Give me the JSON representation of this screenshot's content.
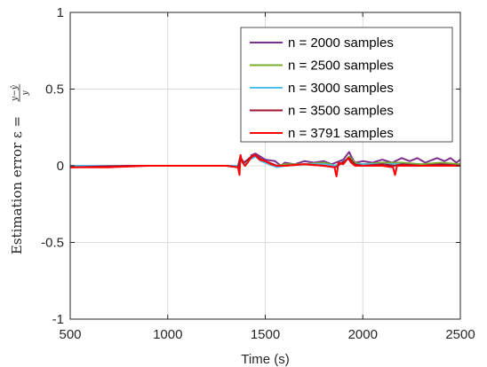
{
  "chart_data": {
    "type": "line",
    "xlabel": "Time (s)",
    "ylabel": {
      "main": "Estimation error ε =",
      "numerator": "y−ŷ",
      "denominator": "y"
    },
    "xlim": [
      500,
      2500
    ],
    "ylim": [
      -1,
      1
    ],
    "xticks": [
      "500",
      "1000",
      "1500",
      "2000",
      "2500"
    ],
    "yticks": [
      "1",
      "0.5",
      "0",
      "-0.5",
      "-1"
    ],
    "grid": true,
    "legend_position": "top-right",
    "series": [
      {
        "name": "n = 2000 samples",
        "color": "#7E2F8E",
        "points": [
          [
            500,
            0.0
          ],
          [
            800,
            0.0
          ],
          [
            1100,
            0.0
          ],
          [
            1300,
            0.0
          ],
          [
            1360,
            0.0
          ],
          [
            1372,
            0.06
          ],
          [
            1385,
            0.03
          ],
          [
            1398,
            0.01
          ],
          [
            1410,
            0.02
          ],
          [
            1430,
            0.07
          ],
          [
            1450,
            0.08
          ],
          [
            1475,
            0.06
          ],
          [
            1500,
            0.04
          ],
          [
            1550,
            0.03
          ],
          [
            1580,
            0.0
          ],
          [
            1600,
            0.02
          ],
          [
            1650,
            0.01
          ],
          [
            1700,
            0.03
          ],
          [
            1750,
            0.02
          ],
          [
            1800,
            0.03
          ],
          [
            1840,
            0.01
          ],
          [
            1860,
            0.02
          ],
          [
            1900,
            0.04
          ],
          [
            1930,
            0.09
          ],
          [
            1945,
            0.05
          ],
          [
            1960,
            0.02
          ],
          [
            2000,
            0.03
          ],
          [
            2050,
            0.02
          ],
          [
            2100,
            0.04
          ],
          [
            2150,
            0.02
          ],
          [
            2200,
            0.05
          ],
          [
            2240,
            0.03
          ],
          [
            2280,
            0.05
          ],
          [
            2320,
            0.02
          ],
          [
            2380,
            0.05
          ],
          [
            2420,
            0.03
          ],
          [
            2450,
            0.05
          ],
          [
            2480,
            0.02
          ],
          [
            2500,
            0.04
          ]
        ]
      },
      {
        "name": "n = 2500 samples",
        "color": "#77AC30",
        "points": [
          [
            500,
            0.0
          ],
          [
            800,
            0.0
          ],
          [
            1100,
            0.0
          ],
          [
            1300,
            0.0
          ],
          [
            1360,
            0.0
          ],
          [
            1372,
            0.05
          ],
          [
            1385,
            0.02
          ],
          [
            1398,
            0.0
          ],
          [
            1420,
            0.05
          ],
          [
            1450,
            0.07
          ],
          [
            1480,
            0.04
          ],
          [
            1520,
            0.02
          ],
          [
            1560,
            0.0
          ],
          [
            1600,
            0.01
          ],
          [
            1700,
            0.01
          ],
          [
            1800,
            0.02
          ],
          [
            1860,
            0.0
          ],
          [
            1900,
            0.02
          ],
          [
            1930,
            0.06
          ],
          [
            1960,
            0.02
          ],
          [
            2000,
            0.01
          ],
          [
            2100,
            0.02
          ],
          [
            2200,
            0.02
          ],
          [
            2300,
            0.01
          ],
          [
            2400,
            0.02
          ],
          [
            2500,
            0.01
          ]
        ]
      },
      {
        "name": "n = 3000 samples",
        "color": "#4DBEEE",
        "points": [
          [
            500,
            0.0
          ],
          [
            800,
            0.0
          ],
          [
            1100,
            0.0
          ],
          [
            1300,
            0.0
          ],
          [
            1360,
            0.0
          ],
          [
            1372,
            0.04
          ],
          [
            1390,
            0.01
          ],
          [
            1420,
            0.04
          ],
          [
            1450,
            0.06
          ],
          [
            1480,
            0.03
          ],
          [
            1520,
            0.01
          ],
          [
            1560,
            -0.01
          ],
          [
            1600,
            0.0
          ],
          [
            1700,
            0.01
          ],
          [
            1800,
            0.01
          ],
          [
            1860,
            0.0
          ],
          [
            1930,
            0.05
          ],
          [
            1960,
            0.01
          ],
          [
            2000,
            0.01
          ],
          [
            2100,
            0.01
          ],
          [
            2200,
            0.01
          ],
          [
            2300,
            0.0
          ],
          [
            2400,
            0.01
          ],
          [
            2500,
            0.0
          ]
        ]
      },
      {
        "name": "n = 3500 samples",
        "color": "#A2142F",
        "points": [
          [
            500,
            -0.01
          ],
          [
            800,
            0.0
          ],
          [
            1100,
            0.0
          ],
          [
            1300,
            0.0
          ],
          [
            1360,
            -0.01
          ],
          [
            1372,
            0.05
          ],
          [
            1390,
            0.02
          ],
          [
            1420,
            0.05
          ],
          [
            1450,
            0.07
          ],
          [
            1480,
            0.04
          ],
          [
            1520,
            0.02
          ],
          [
            1560,
            0.0
          ],
          [
            1600,
            0.0
          ],
          [
            1700,
            0.01
          ],
          [
            1800,
            0.0
          ],
          [
            1860,
            -0.01
          ],
          [
            1930,
            0.05
          ],
          [
            1960,
            0.01
          ],
          [
            2000,
            0.0
          ],
          [
            2100,
            0.01
          ],
          [
            2160,
            0.0
          ],
          [
            2200,
            0.01
          ],
          [
            2300,
            0.0
          ],
          [
            2400,
            0.01
          ],
          [
            2500,
            0.0
          ]
        ]
      },
      {
        "name": "n = 3791 samples",
        "color": "#FF0000",
        "points": [
          [
            500,
            -0.01
          ],
          [
            700,
            -0.01
          ],
          [
            900,
            0.0
          ],
          [
            1100,
            0.0
          ],
          [
            1300,
            0.0
          ],
          [
            1360,
            -0.01
          ],
          [
            1368,
            -0.06
          ],
          [
            1373,
            0.07
          ],
          [
            1380,
            0.03
          ],
          [
            1395,
            0.0
          ],
          [
            1410,
            0.02
          ],
          [
            1430,
            0.06
          ],
          [
            1450,
            0.07
          ],
          [
            1470,
            0.04
          ],
          [
            1500,
            0.03
          ],
          [
            1530,
            0.01
          ],
          [
            1560,
            0.0
          ],
          [
            1600,
            0.0
          ],
          [
            1700,
            0.01
          ],
          [
            1800,
            0.0
          ],
          [
            1855,
            -0.01
          ],
          [
            1865,
            -0.07
          ],
          [
            1875,
            0.02
          ],
          [
            1900,
            0.01
          ],
          [
            1925,
            0.05
          ],
          [
            1940,
            0.02
          ],
          [
            1960,
            0.0
          ],
          [
            2000,
            0.0
          ],
          [
            2100,
            0.0
          ],
          [
            2155,
            -0.01
          ],
          [
            2165,
            -0.06
          ],
          [
            2175,
            0.0
          ],
          [
            2200,
            0.0
          ],
          [
            2300,
            0.0
          ],
          [
            2400,
            0.0
          ],
          [
            2500,
            0.0
          ]
        ]
      }
    ]
  }
}
